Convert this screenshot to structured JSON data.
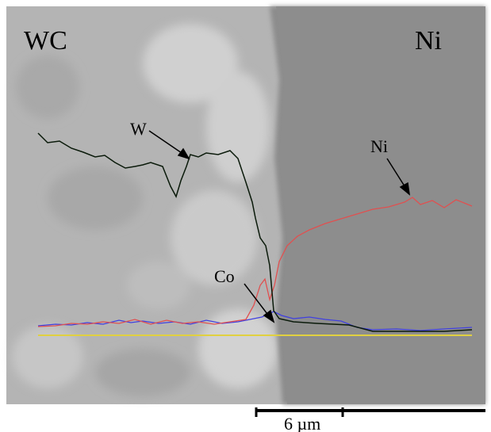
{
  "labels": {
    "left_phase": "WC",
    "right_phase": "Ni",
    "w_curve": "W",
    "ni_curve": "Ni",
    "co_curve": "Co"
  },
  "scale_bar": "6 µm"
}
